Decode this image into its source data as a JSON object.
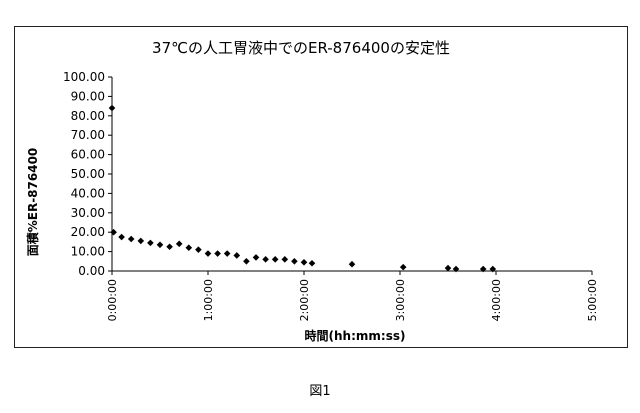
{
  "figure_caption": "図1",
  "chart_data": {
    "type": "scatter",
    "title": "37℃の人工胃液中でのER-876400の安定性",
    "xlabel": "時間(hh:mm:ss)",
    "ylabel": "面積%ER-876400",
    "xlim": [
      0,
      300
    ],
    "ylim": [
      0,
      100
    ],
    "x_ticks": [
      "0:00:00",
      "1:00:00",
      "2:00:00",
      "3:00:00",
      "4:00:00",
      "5:00:00"
    ],
    "y_ticks": [
      "0.00",
      "10.00",
      "20.00",
      "30.00",
      "40.00",
      "50.00",
      "60.00",
      "70.00",
      "80.00",
      "90.00",
      "100.00"
    ],
    "grid": false,
    "marker_color": "#000000",
    "series": [
      {
        "x": [
          0,
          1,
          6,
          12,
          18,
          24,
          30,
          36,
          42,
          48,
          54,
          60,
          66,
          72,
          78,
          84,
          90,
          96,
          102,
          108,
          114,
          120,
          125,
          150,
          182,
          210,
          215,
          232,
          238
        ],
        "y": [
          84,
          20,
          17.5,
          16.5,
          15.5,
          14.5,
          13.5,
          12.5,
          14,
          12,
          11,
          9,
          9,
          9,
          8,
          5,
          7,
          6,
          6,
          6,
          5,
          4.5,
          4,
          3.5,
          2,
          1.5,
          1,
          1,
          1
        ]
      }
    ]
  }
}
